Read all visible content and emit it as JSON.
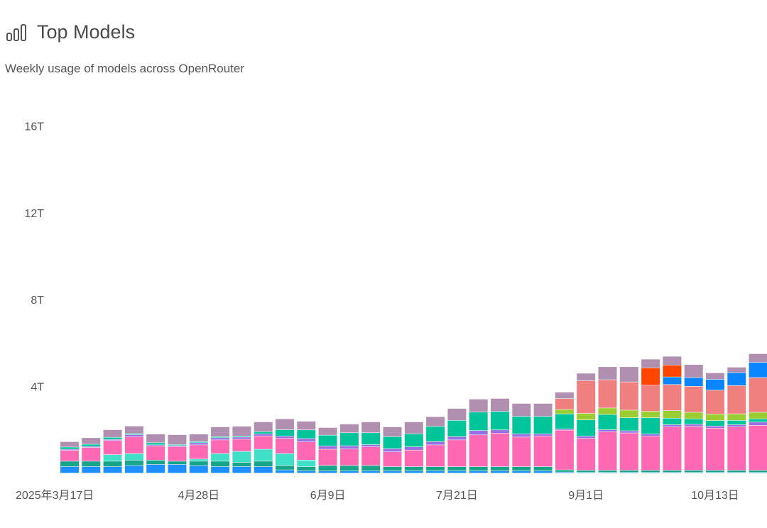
{
  "header": {
    "title": "Top Models",
    "subtitle": "Weekly usage of models across OpenRouter",
    "icon": "bar-chart-icon"
  },
  "chart_data": {
    "type": "bar",
    "stacked": true,
    "title": "Top Models",
    "subtitle": "Weekly usage of models across OpenRouter",
    "xlabel": "",
    "ylabel": "",
    "unit": "T",
    "ylim": [
      0,
      16
    ],
    "yticks": [
      {
        "value": 4,
        "label": "4T"
      },
      {
        "value": 8,
        "label": "8T"
      },
      {
        "value": 12,
        "label": "12T"
      },
      {
        "value": 16,
        "label": "16T"
      }
    ],
    "xtick_labels": [
      {
        "index": 0,
        "label": "2025年3月17日"
      },
      {
        "index": 6,
        "label": "4月28日"
      },
      {
        "index": 12,
        "label": "6月9日"
      },
      {
        "index": 18,
        "label": "7月21日"
      },
      {
        "index": 24,
        "label": "9月1日"
      },
      {
        "index": 30,
        "label": "10月13日"
      }
    ],
    "grid": false,
    "legend": "none",
    "bar_count": 34,
    "series": [
      {
        "color": "#1e8fff",
        "values": [
          0.3,
          0.3,
          0.3,
          0.35,
          0.4,
          0.4,
          0.35,
          0.3,
          0.3,
          0.3,
          0.15,
          0.1,
          0.1,
          0.1,
          0.1,
          0.1,
          0.1,
          0.1,
          0.1,
          0.1,
          0.1,
          0.1,
          0.1,
          0.05,
          0.03,
          0.03,
          0.03,
          0.03,
          0.03,
          0.03,
          0.03,
          0.03,
          0.03,
          0.03
        ]
      },
      {
        "color": "#17a589",
        "values": [
          0.25,
          0.25,
          0.25,
          0.25,
          0.2,
          0.15,
          0.2,
          0.25,
          0.2,
          0.25,
          0.2,
          0.2,
          0.25,
          0.25,
          0.25,
          0.2,
          0.2,
          0.2,
          0.2,
          0.2,
          0.2,
          0.2,
          0.2,
          0.1,
          0.1,
          0.1,
          0.1,
          0.1,
          0.1,
          0.1,
          0.1,
          0.1,
          0.1,
          0.1
        ]
      },
      {
        "color": "#40e0c8",
        "values": [
          0,
          0,
          0.3,
          0.3,
          0,
          0,
          0.1,
          0.35,
          0.5,
          0.55,
          0.55,
          0.3,
          0,
          0,
          0,
          0,
          0,
          0,
          0,
          0,
          0,
          0,
          0,
          0,
          0,
          0,
          0,
          0,
          0,
          0,
          0,
          0,
          0,
          0
        ]
      },
      {
        "color": "#ff69b4",
        "values": [
          0.5,
          0.63,
          0.65,
          0.77,
          0.65,
          0.67,
          0.65,
          0.63,
          0.56,
          0.61,
          0.7,
          0.84,
          0.75,
          0.76,
          0.86,
          0.68,
          0.76,
          1.0,
          1.23,
          1.46,
          1.54,
          1.36,
          1.41,
          1.83,
          1.47,
          1.77,
          1.72,
          1.57,
          2.0,
          2.02,
          1.94,
          2.0,
          2.07,
          2.4
        ]
      },
      {
        "color": "#9b6fe0",
        "values": [
          0.05,
          0.05,
          0.05,
          0.1,
          0.05,
          0.05,
          0.1,
          0.1,
          0.1,
          0.1,
          0.1,
          0.15,
          0.15,
          0.15,
          0.1,
          0.15,
          0.15,
          0.15,
          0.15,
          0.2,
          0.15,
          0.15,
          0.1,
          0.05,
          0.1,
          0.1,
          0.1,
          0.1,
          0.1,
          0.1,
          0.1,
          0.1,
          0.15,
          0.1
        ]
      },
      {
        "color": "#00c49a",
        "values": [
          0.1,
          0.1,
          0.1,
          0.05,
          0.1,
          0.05,
          0.05,
          0.05,
          0.05,
          0.1,
          0.3,
          0.4,
          0.5,
          0.6,
          0.55,
          0.55,
          0.6,
          0.7,
          0.75,
          0.85,
          0.85,
          0.8,
          0.8,
          0.7,
          0.75,
          0.7,
          0.6,
          0.75,
          0.3,
          0.25,
          0.25,
          0.2,
          0.15,
          0.2
        ]
      },
      {
        "color": "#9acd32",
        "values": [
          0,
          0,
          0,
          0,
          0,
          0,
          0,
          0,
          0,
          0,
          0,
          0,
          0,
          0,
          0,
          0,
          0,
          0,
          0,
          0,
          0,
          0,
          0,
          0.2,
          0.3,
          0.3,
          0.35,
          0.3,
          0.35,
          0.3,
          0.3,
          0.3,
          0.3,
          0.3
        ]
      },
      {
        "color": "#f08080",
        "values": [
          0,
          0,
          0,
          0,
          0,
          0,
          0,
          0,
          0,
          0,
          0,
          0,
          0,
          0,
          0,
          0,
          0,
          0,
          0,
          0,
          0,
          0,
          0,
          0.5,
          1.5,
          1.3,
          1.3,
          1.2,
          1.2,
          1.2,
          1.1,
          1.3,
          1.6,
          1.6
        ]
      },
      {
        "color": "#0a84ff",
        "values": [
          0,
          0,
          0,
          0,
          0,
          0,
          0,
          0,
          0,
          0,
          0,
          0,
          0,
          0,
          0,
          0,
          0,
          0,
          0,
          0,
          0,
          0,
          0,
          0,
          0,
          0,
          0,
          0,
          0.35,
          0.4,
          0.5,
          0.6,
          0.7,
          0.6
        ]
      },
      {
        "color": "#ff4500",
        "values": [
          0,
          0,
          0,
          0,
          0,
          0,
          0,
          0,
          0,
          0,
          0,
          0,
          0,
          0,
          0,
          0,
          0,
          0,
          0,
          0,
          0,
          0,
          0,
          0,
          0,
          0,
          0,
          0.8,
          0.55,
          0,
          0,
          0,
          0,
          0
        ]
      },
      {
        "color": "#b08fb0",
        "values": [
          0.25,
          0.3,
          0.35,
          0.35,
          0.4,
          0.45,
          0.35,
          0.45,
          0.45,
          0.45,
          0.5,
          0.4,
          0.35,
          0.4,
          0.5,
          0.45,
          0.55,
          0.45,
          0.55,
          0.6,
          0.6,
          0.6,
          0.6,
          0.3,
          0.35,
          0.6,
          0.7,
          0.4,
          0.4,
          0.6,
          0.3,
          0.25,
          0.4,
          0.5
        ]
      }
    ]
  }
}
